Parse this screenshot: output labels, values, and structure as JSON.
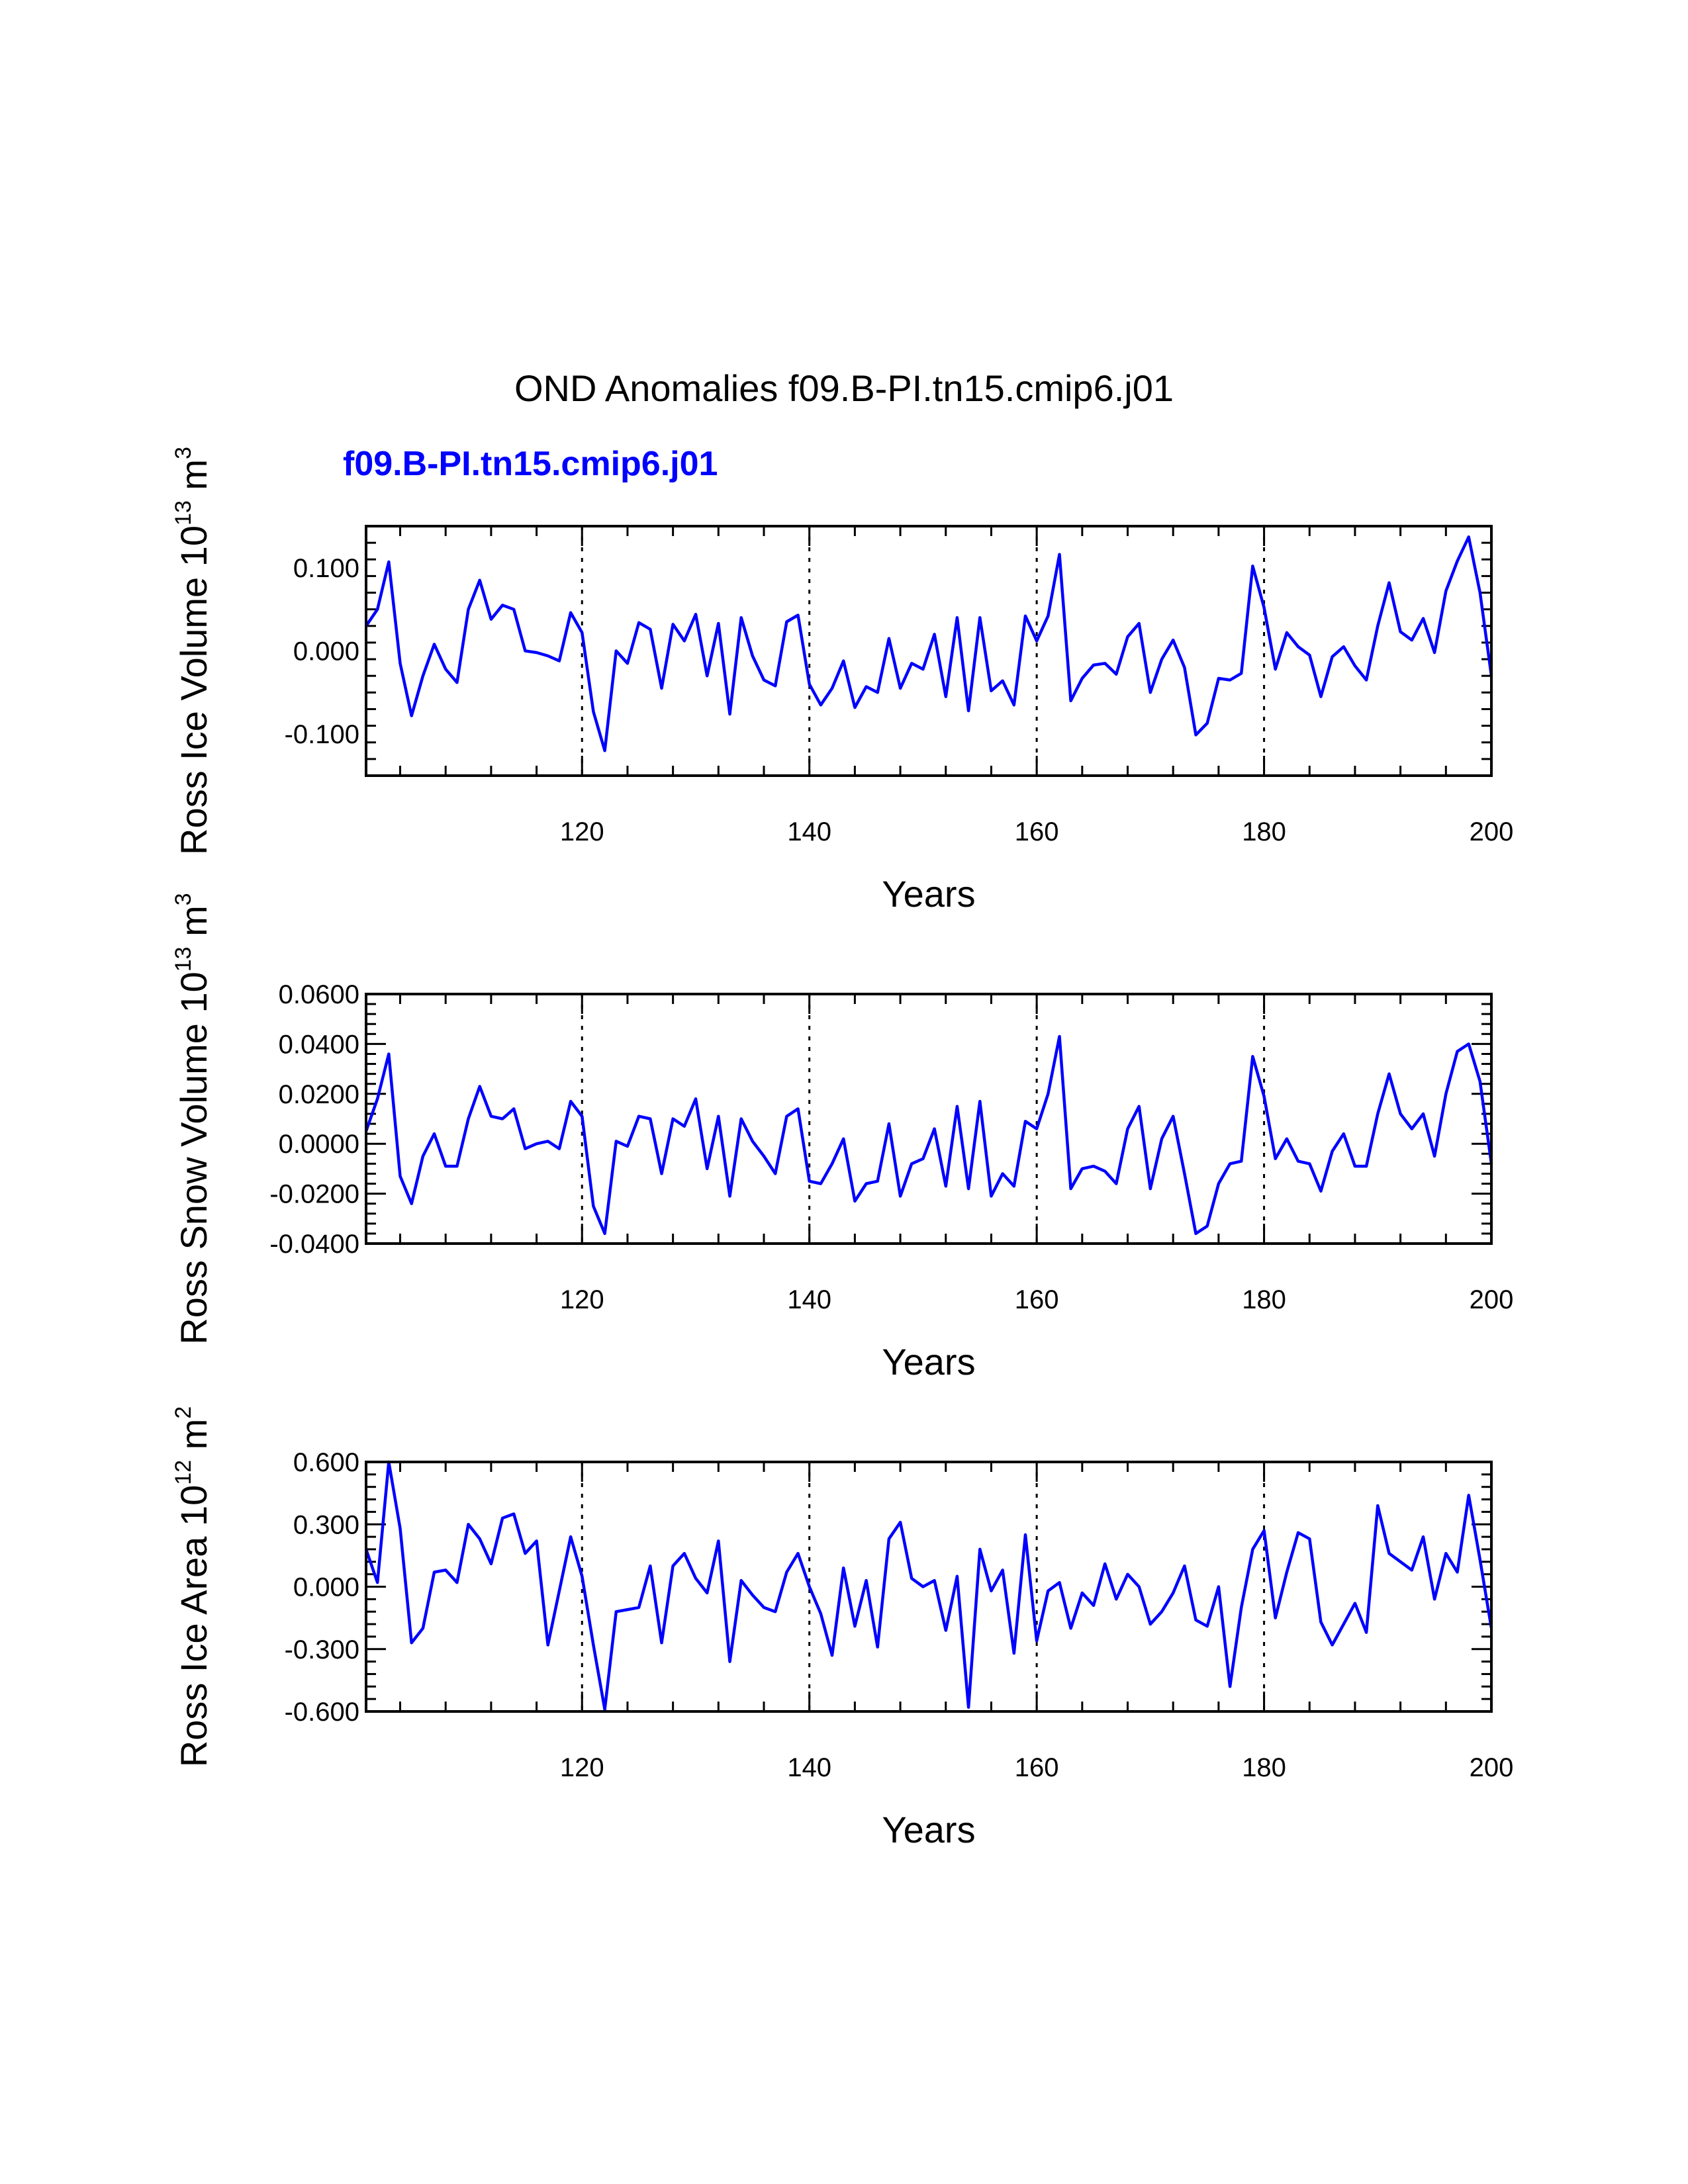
{
  "title": "OND Anomalies f09.B-PI.tn15.cmip6.j01",
  "subtitle": "f09.B-PI.tn15.cmip6.j01",
  "colors": {
    "series": "#0000ff",
    "axes": "#000000"
  },
  "chart_data": [
    {
      "type": "line",
      "title": "OND Anomalies f09.B-PI.tn15.cmip6.j01",
      "series_name": "f09.B-PI.tn15.cmip6.j01",
      "xlabel": "Years",
      "ylabel_main": "Ross Ice Volume 10",
      "ylabel_exp": "13",
      "ylabel_unit": " m",
      "ylabel_unit_exp": "3",
      "xlim": [
        101,
        200
      ],
      "ylim": [
        -0.15,
        0.15
      ],
      "xticks": [
        120,
        140,
        160,
        180,
        200
      ],
      "xtick_labels": [
        "120",
        "140",
        "160",
        "180",
        "200"
      ],
      "yticks": [
        -0.1,
        0.0,
        0.1
      ],
      "ytick_labels": [
        "-0.100",
        "0.000",
        "0.100"
      ],
      "vlines": [
        120,
        140,
        160,
        180
      ],
      "x_start": 101,
      "values": [
        0.03,
        0.05,
        0.107,
        -0.015,
        -0.078,
        -0.03,
        0.008,
        -0.022,
        -0.038,
        0.05,
        0.085,
        0.038,
        0.055,
        0.05,
        0.0,
        -0.002,
        -0.006,
        -0.012,
        0.046,
        0.022,
        -0.073,
        -0.12,
        0.0,
        -0.015,
        0.034,
        0.026,
        -0.045,
        0.032,
        0.012,
        0.044,
        -0.03,
        0.033,
        -0.076,
        0.04,
        -0.006,
        -0.035,
        -0.042,
        0.035,
        0.043,
        -0.04,
        -0.065,
        -0.045,
        -0.012,
        -0.068,
        -0.043,
        -0.05,
        0.015,
        -0.045,
        -0.015,
        -0.022,
        0.02,
        -0.055,
        0.04,
        -0.072,
        0.04,
        -0.048,
        -0.036,
        -0.065,
        0.042,
        0.012,
        0.042,
        0.116,
        -0.06,
        -0.033,
        -0.017,
        -0.015,
        -0.028,
        0.017,
        0.033,
        -0.05,
        -0.01,
        0.013,
        -0.02,
        -0.101,
        -0.087,
        -0.033,
        -0.035,
        -0.027,
        0.102,
        0.052,
        -0.022,
        0.022,
        0.005,
        -0.005,
        -0.055,
        -0.007,
        0.005,
        -0.018,
        -0.035,
        0.03,
        0.082,
        0.023,
        0.013,
        0.039,
        -0.002,
        0.072,
        0.108,
        0.137,
        0.07,
        -0.03
      ]
    },
    {
      "type": "line",
      "xlabel": "Years",
      "ylabel_main": "Ross Snow Volume 10",
      "ylabel_exp": "13",
      "ylabel_unit": " m",
      "ylabel_unit_exp": "3",
      "xlim": [
        101,
        200
      ],
      "ylim": [
        -0.04,
        0.06
      ],
      "xticks": [
        120,
        140,
        160,
        180,
        200
      ],
      "xtick_labels": [
        "120",
        "140",
        "160",
        "180",
        "200"
      ],
      "yticks": [
        -0.04,
        -0.02,
        0.0,
        0.02,
        0.04,
        0.06
      ],
      "ytick_labels": [
        "-0.0400",
        "-0.0200",
        "0.0000",
        "0.0200",
        "0.0400",
        "0.0600"
      ],
      "vlines": [
        120,
        140,
        160,
        180
      ],
      "x_start": 101,
      "values": [
        0.005,
        0.018,
        0.036,
        -0.013,
        -0.024,
        -0.005,
        0.004,
        -0.009,
        -0.009,
        0.01,
        0.023,
        0.011,
        0.01,
        0.014,
        -0.002,
        0.0,
        0.001,
        -0.002,
        0.017,
        0.011,
        -0.025,
        -0.036,
        0.001,
        -0.001,
        0.011,
        0.01,
        -0.012,
        0.01,
        0.007,
        0.018,
        -0.01,
        0.011,
        -0.021,
        0.01,
        0.001,
        -0.005,
        -0.012,
        0.011,
        0.014,
        -0.015,
        -0.016,
        -0.008,
        0.002,
        -0.023,
        -0.016,
        -0.015,
        0.008,
        -0.021,
        -0.008,
        -0.006,
        0.006,
        -0.017,
        0.015,
        -0.018,
        0.017,
        -0.021,
        -0.012,
        -0.017,
        0.009,
        0.006,
        0.02,
        0.043,
        -0.018,
        -0.01,
        -0.009,
        -0.011,
        -0.016,
        0.006,
        0.015,
        -0.018,
        0.002,
        0.011,
        -0.012,
        -0.036,
        -0.033,
        -0.016,
        -0.008,
        -0.007,
        0.035,
        0.019,
        -0.006,
        0.002,
        -0.007,
        -0.008,
        -0.019,
        -0.003,
        0.004,
        -0.009,
        -0.009,
        0.012,
        0.028,
        0.012,
        0.006,
        0.012,
        -0.005,
        0.02,
        0.037,
        0.04,
        0.025,
        -0.008
      ]
    },
    {
      "type": "line",
      "xlabel": "Years",
      "ylabel_main": "Ross Ice Area 10",
      "ylabel_exp": "12",
      "ylabel_unit": " m",
      "ylabel_unit_exp": "2",
      "xlim": [
        101,
        200
      ],
      "ylim": [
        -0.6,
        0.6
      ],
      "xticks": [
        120,
        140,
        160,
        180,
        200
      ],
      "xtick_labels": [
        "120",
        "140",
        "160",
        "180",
        "200"
      ],
      "yticks": [
        -0.6,
        -0.3,
        0.0,
        0.3,
        0.6
      ],
      "ytick_labels": [
        "-0.600",
        "-0.300",
        "0.000",
        "0.300",
        "0.600"
      ],
      "vlines": [
        120,
        140,
        160,
        180
      ],
      "x_start": 101,
      "values": [
        0.18,
        0.02,
        0.6,
        0.28,
        -0.27,
        -0.2,
        0.07,
        0.08,
        0.02,
        0.3,
        0.23,
        0.11,
        0.33,
        0.35,
        0.16,
        0.22,
        -0.28,
        -0.02,
        0.24,
        0.05,
        -0.28,
        -0.59,
        -0.12,
        -0.11,
        -0.1,
        0.1,
        -0.27,
        0.1,
        0.16,
        0.04,
        -0.03,
        0.22,
        -0.36,
        0.03,
        -0.04,
        -0.1,
        -0.12,
        0.07,
        0.16,
        0.0,
        -0.13,
        -0.33,
        0.09,
        -0.19,
        0.03,
        -0.29,
        0.23,
        0.31,
        0.04,
        0.0,
        0.03,
        -0.21,
        0.05,
        -0.58,
        0.18,
        -0.02,
        0.08,
        -0.32,
        0.25,
        -0.26,
        -0.02,
        0.02,
        -0.2,
        -0.03,
        -0.09,
        0.11,
        -0.06,
        0.06,
        0.0,
        -0.18,
        -0.12,
        -0.03,
        0.1,
        -0.16,
        -0.19,
        0.0,
        -0.48,
        -0.1,
        0.18,
        0.27,
        -0.15,
        0.07,
        0.26,
        0.23,
        -0.17,
        -0.28,
        -0.18,
        -0.08,
        -0.22,
        0.39,
        0.16,
        0.12,
        0.08,
        0.24,
        -0.06,
        0.16,
        0.07,
        0.44,
        0.13,
        -0.2
      ]
    }
  ]
}
